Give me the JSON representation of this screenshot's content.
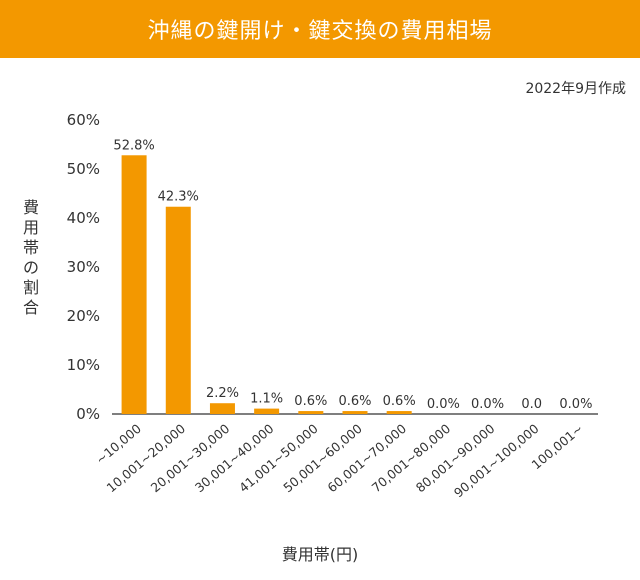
{
  "header": {
    "title": "沖縄の鍵開け・鍵交換の費用相場"
  },
  "note": "2022年9月作成",
  "chart_data": {
    "type": "bar",
    "title": "",
    "xlabel": "費用帯(円)",
    "ylabel": "費用帯の割合",
    "ylim": [
      0,
      60
    ],
    "y_ticks": [
      "0%",
      "10%",
      "20%",
      "30%",
      "40%",
      "50%",
      "60%"
    ],
    "categories": [
      "~10,000",
      "10,001~20,000",
      "20,001~30,000",
      "30,001~40,000",
      "41,001~50,000",
      "50,001~60,000",
      "60,001~70,000",
      "70,001~80,000",
      "80,001~90,000",
      "90,001~100,000",
      "100,001~"
    ],
    "values": [
      52.8,
      42.3,
      2.2,
      1.1,
      0.6,
      0.6,
      0.6,
      0.0,
      0.0,
      0.0,
      0.0
    ],
    "data_labels": [
      "52.8%",
      "42.3%",
      "2.2%",
      "1.1%",
      "0.6%",
      "0.6%",
      "0.6%",
      "0.0%",
      "0.0%",
      "0.0",
      "0.0%"
    ],
    "grid": false,
    "legend": "none",
    "colors": {
      "bar": "#f39800",
      "header": "#f39800"
    }
  }
}
